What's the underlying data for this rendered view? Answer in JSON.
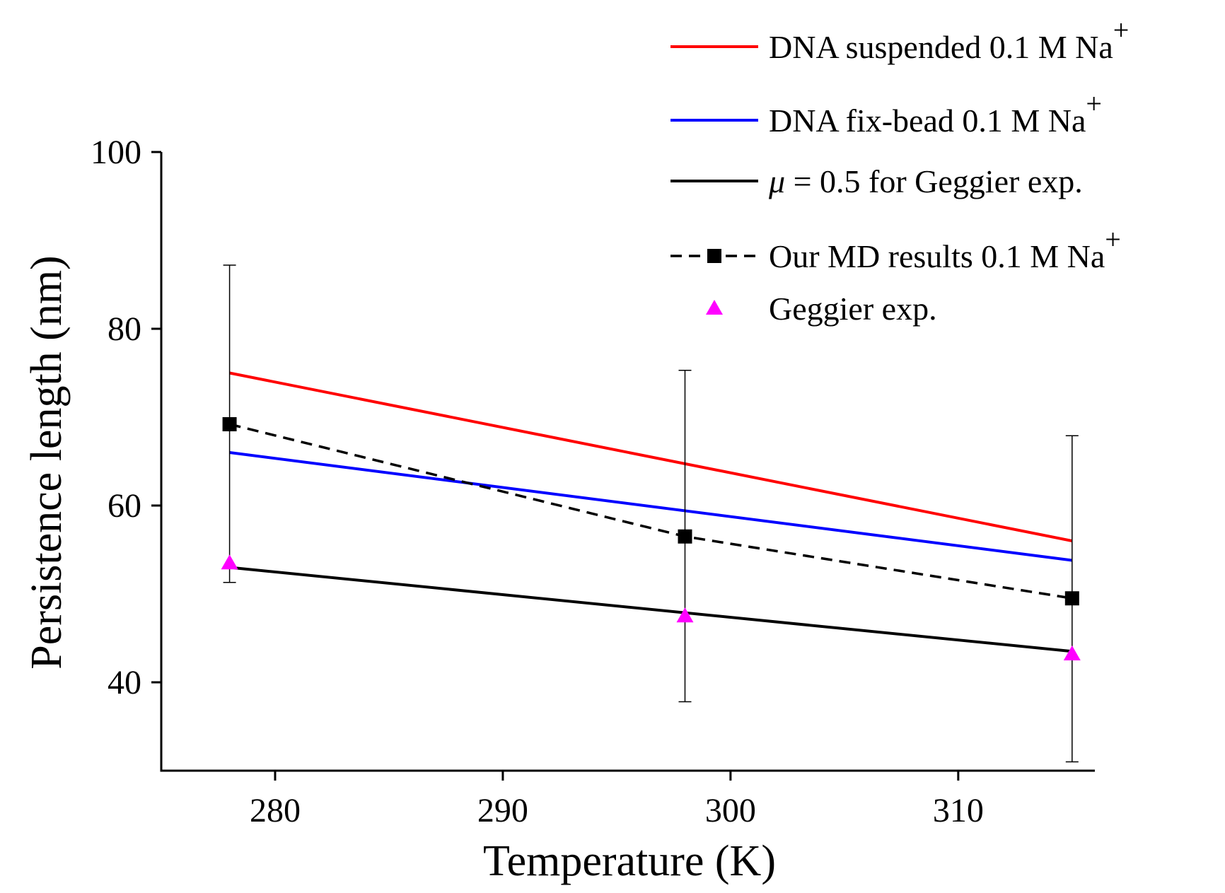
{
  "chart_data": {
    "type": "line",
    "xlabel": "Temperature (K)",
    "ylabel": "Persistence length (nm)",
    "xlim": [
      275,
      316
    ],
    "ylim": [
      30,
      100
    ],
    "xticks": [
      280,
      290,
      300,
      310
    ],
    "yticks": [
      40,
      60,
      80,
      100
    ],
    "legend_position": "top-right",
    "grid": false,
    "series": [
      {
        "name": "DNA suspended 0.1 M Na",
        "superscript": "+",
        "style": "line",
        "color": "#ff0000",
        "x": [
          278,
          315
        ],
        "y": [
          75.0,
          56.0
        ]
      },
      {
        "name": "DNA fix-bead 0.1 M Na",
        "superscript": "+",
        "style": "line",
        "color": "#0000ff",
        "x": [
          278,
          315
        ],
        "y": [
          66.0,
          53.8
        ]
      },
      {
        "name_prefix": "μ",
        "name": " = 0.5 for Geggier exp.",
        "style": "line",
        "color": "#000000",
        "x": [
          278,
          315
        ],
        "y": [
          53.0,
          43.5
        ]
      },
      {
        "name": "Our MD results 0.1 M Na",
        "superscript": "+",
        "style": "dashed-square",
        "color": "#000000",
        "x": [
          278,
          298,
          315
        ],
        "y": [
          69.2,
          56.5,
          49.5
        ],
        "error_low": [
          51.3,
          37.8,
          31.0
        ],
        "error_high": [
          87.2,
          75.3,
          67.9
        ]
      },
      {
        "name": "Geggier exp.",
        "style": "triangle",
        "color": "#ff00ff",
        "x": [
          278,
          298,
          315
        ],
        "y": [
          53.5,
          47.5,
          43.2
        ]
      }
    ]
  }
}
